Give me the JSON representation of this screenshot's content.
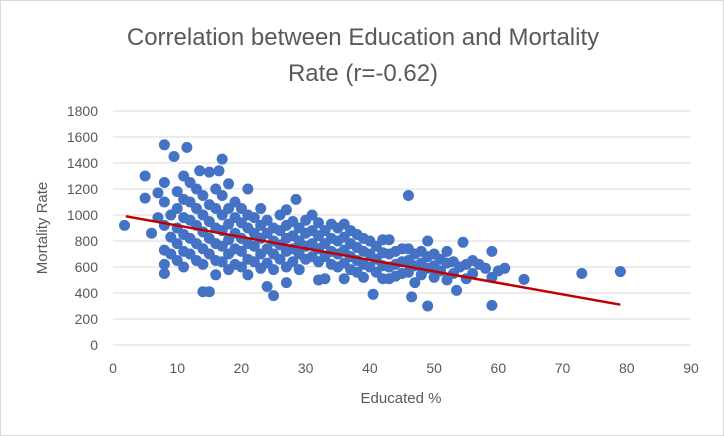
{
  "chart_data": {
    "type": "scatter",
    "title_lines": [
      "Correlation between Education and Mortality",
      "Rate (r=-0.62)"
    ],
    "xlabel": "Educated %",
    "ylabel": "Mortality Rate",
    "xlim": [
      0,
      90
    ],
    "ylim": [
      0,
      1800
    ],
    "x_ticks": [
      0,
      10,
      20,
      30,
      40,
      50,
      60,
      70,
      80,
      90
    ],
    "y_ticks": [
      0,
      200,
      400,
      600,
      800,
      1000,
      1200,
      1400,
      1600,
      1800
    ],
    "grid": "horizontal",
    "legend": "none",
    "colors": {
      "points": "#4472c4",
      "trendline": "#c00000",
      "grid": "#d9d9d9",
      "text": "#595959"
    },
    "trendline": {
      "x": [
        2,
        79
      ],
      "y": [
        990,
        310
      ]
    },
    "series": [
      {
        "points": [
          [
            1.8,
            920
          ],
          [
            5,
            1300
          ],
          [
            5,
            1130
          ],
          [
            6,
            860
          ],
          [
            7,
            980
          ],
          [
            7,
            1170
          ],
          [
            8,
            1540
          ],
          [
            8,
            1250
          ],
          [
            8,
            1100
          ],
          [
            8,
            920
          ],
          [
            8,
            730
          ],
          [
            8,
            620
          ],
          [
            8,
            550
          ],
          [
            9,
            1000
          ],
          [
            9,
            830
          ],
          [
            9,
            700
          ],
          [
            9.5,
            1450
          ],
          [
            10,
            1180
          ],
          [
            10,
            1050
          ],
          [
            10,
            900
          ],
          [
            10,
            780
          ],
          [
            10,
            650
          ],
          [
            11,
            1300
          ],
          [
            11,
            1120
          ],
          [
            11,
            980
          ],
          [
            11,
            850
          ],
          [
            11,
            720
          ],
          [
            11,
            600
          ],
          [
            11.5,
            1520
          ],
          [
            12,
            1250
          ],
          [
            12,
            1100
          ],
          [
            12,
            960
          ],
          [
            12,
            820
          ],
          [
            12,
            700
          ],
          [
            13,
            1200
          ],
          [
            13,
            1050
          ],
          [
            13,
            920
          ],
          [
            13,
            780
          ],
          [
            13,
            650
          ],
          [
            13.5,
            1340
          ],
          [
            14,
            1150
          ],
          [
            14,
            1000
          ],
          [
            14,
            870
          ],
          [
            14,
            740
          ],
          [
            14,
            620
          ],
          [
            14,
            410
          ],
          [
            15,
            1330
          ],
          [
            15,
            1080
          ],
          [
            15,
            950
          ],
          [
            15,
            820
          ],
          [
            15,
            700
          ],
          [
            15,
            410
          ],
          [
            16,
            1200
          ],
          [
            16,
            1050
          ],
          [
            16,
            900
          ],
          [
            16,
            780
          ],
          [
            16,
            650
          ],
          [
            16,
            540
          ],
          [
            16.5,
            1340
          ],
          [
            17,
            1430
          ],
          [
            17,
            1150
          ],
          [
            17,
            1000
          ],
          [
            17,
            880
          ],
          [
            17,
            760
          ],
          [
            17,
            640
          ],
          [
            18,
            1240
          ],
          [
            18,
            1050
          ],
          [
            18,
            930
          ],
          [
            18,
            810
          ],
          [
            18,
            700
          ],
          [
            18,
            580
          ],
          [
            19,
            1100
          ],
          [
            19,
            980
          ],
          [
            19,
            860
          ],
          [
            19,
            740
          ],
          [
            19,
            620
          ],
          [
            20,
            1050
          ],
          [
            20,
            940
          ],
          [
            20,
            820
          ],
          [
            20,
            720
          ],
          [
            20,
            600
          ],
          [
            21,
            1200
          ],
          [
            21,
            1000
          ],
          [
            21,
            900
          ],
          [
            21,
            780
          ],
          [
            21,
            660
          ],
          [
            21,
            540
          ],
          [
            22,
            980
          ],
          [
            22,
            860
          ],
          [
            22,
            760
          ],
          [
            22,
            640
          ],
          [
            23,
            1050
          ],
          [
            23,
            920
          ],
          [
            23,
            820
          ],
          [
            23,
            700
          ],
          [
            23,
            590
          ],
          [
            24,
            960
          ],
          [
            24,
            860
          ],
          [
            24,
            740
          ],
          [
            24,
            630
          ],
          [
            24,
            450
          ],
          [
            25,
            900
          ],
          [
            25,
            800
          ],
          [
            25,
            700
          ],
          [
            25,
            580
          ],
          [
            25,
            380
          ],
          [
            26,
            1000
          ],
          [
            26,
            880
          ],
          [
            26,
            770
          ],
          [
            26,
            660
          ],
          [
            27,
            1040
          ],
          [
            27,
            920
          ],
          [
            27,
            820
          ],
          [
            27,
            720
          ],
          [
            27,
            600
          ],
          [
            27,
            480
          ],
          [
            28,
            950
          ],
          [
            28,
            840
          ],
          [
            28,
            740
          ],
          [
            28,
            640
          ],
          [
            28.5,
            1120
          ],
          [
            29,
            900
          ],
          [
            29,
            800
          ],
          [
            29,
            700
          ],
          [
            29,
            580
          ],
          [
            30,
            960
          ],
          [
            30,
            860
          ],
          [
            30,
            760
          ],
          [
            30,
            660
          ],
          [
            31,
            1000
          ],
          [
            31,
            880
          ],
          [
            31,
            780
          ],
          [
            31,
            680
          ],
          [
            32,
            940
          ],
          [
            32,
            840
          ],
          [
            32,
            740
          ],
          [
            32,
            640
          ],
          [
            32,
            500
          ],
          [
            33,
            880
          ],
          [
            33,
            780
          ],
          [
            33,
            680
          ],
          [
            33,
            510
          ],
          [
            34,
            930
          ],
          [
            34,
            820
          ],
          [
            34,
            720
          ],
          [
            34,
            620
          ],
          [
            35,
            900
          ],
          [
            35,
            800
          ],
          [
            35,
            700
          ],
          [
            35,
            600
          ],
          [
            36,
            930
          ],
          [
            36,
            830
          ],
          [
            36,
            730
          ],
          [
            36,
            630
          ],
          [
            36,
            510
          ],
          [
            37,
            880
          ],
          [
            37,
            780
          ],
          [
            37,
            680
          ],
          [
            37,
            580
          ],
          [
            38,
            850
          ],
          [
            38,
            750
          ],
          [
            38,
            650
          ],
          [
            38,
            560
          ],
          [
            39,
            820
          ],
          [
            39,
            720
          ],
          [
            39,
            620
          ],
          [
            39,
            520
          ],
          [
            40,
            800
          ],
          [
            40,
            700
          ],
          [
            40,
            600
          ],
          [
            40.5,
            390
          ],
          [
            41,
            760
          ],
          [
            41,
            660
          ],
          [
            41,
            560
          ],
          [
            42,
            810
          ],
          [
            42,
            710
          ],
          [
            42,
            610
          ],
          [
            42,
            510
          ],
          [
            43,
            810
          ],
          [
            43,
            700
          ],
          [
            43,
            600
          ],
          [
            43,
            510
          ],
          [
            44,
            720
          ],
          [
            44,
            620
          ],
          [
            44,
            530
          ],
          [
            45,
            740
          ],
          [
            45,
            640
          ],
          [
            45,
            550
          ],
          [
            46,
            1150
          ],
          [
            46,
            740
          ],
          [
            46,
            650
          ],
          [
            46,
            560
          ],
          [
            46.5,
            370
          ],
          [
            47,
            700
          ],
          [
            47,
            610
          ],
          [
            47,
            480
          ],
          [
            48,
            720
          ],
          [
            48,
            630
          ],
          [
            48,
            540
          ],
          [
            49,
            800
          ],
          [
            49,
            680
          ],
          [
            49,
            590
          ],
          [
            49,
            300
          ],
          [
            50,
            700
          ],
          [
            50,
            610
          ],
          [
            50,
            520
          ],
          [
            51,
            660
          ],
          [
            51,
            570
          ],
          [
            52,
            720
          ],
          [
            52,
            630
          ],
          [
            52,
            500
          ],
          [
            53,
            640
          ],
          [
            53,
            550
          ],
          [
            53.5,
            420
          ],
          [
            54,
            600
          ],
          [
            54.5,
            790
          ],
          [
            55,
            620
          ],
          [
            55,
            510
          ],
          [
            56,
            650
          ],
          [
            56,
            550
          ],
          [
            57,
            620
          ],
          [
            58,
            590
          ],
          [
            59,
            720
          ],
          [
            59,
            520
          ],
          [
            59,
            305
          ],
          [
            60,
            570
          ],
          [
            61,
            590
          ],
          [
            64,
            505
          ],
          [
            73,
            550
          ],
          [
            79,
            565
          ]
        ]
      }
    ]
  }
}
